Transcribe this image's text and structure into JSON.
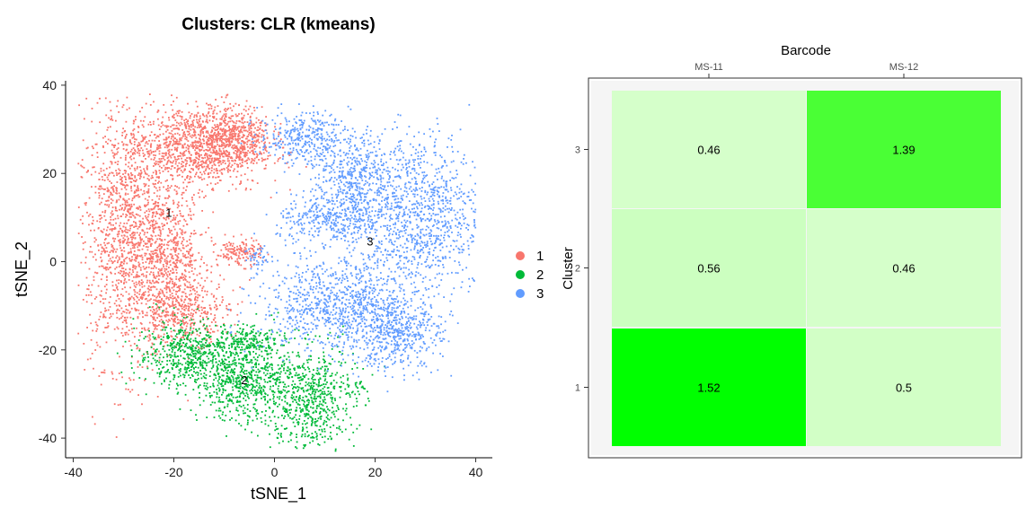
{
  "chart_data": [
    {
      "type": "scatter",
      "title": "Clusters: CLR (kmeans)",
      "xlabel": "tSNE_1",
      "ylabel": "tSNE_2",
      "xlim": [
        -40,
        43
      ],
      "ylim": [
        -45,
        41
      ],
      "xticks": [
        -40,
        -20,
        0,
        20,
        40
      ],
      "yticks": [
        40,
        20,
        0,
        -20,
        -40
      ],
      "legend": {
        "position": "right",
        "entries": [
          "1",
          "2",
          "3"
        ]
      },
      "colors": {
        "1": "#F8766D",
        "2": "#00BA38",
        "3": "#619CFF"
      },
      "series": [
        {
          "name": "1",
          "center": [
            -21,
            11
          ],
          "blobs": [
            [
              -29,
              5,
              7,
              19,
              1400
            ],
            [
              -16,
              26,
              9,
              6,
              1000
            ],
            [
              -8,
              28,
              5,
              5,
              500
            ],
            [
              -21,
              2,
              5,
              9,
              500
            ],
            [
              -7,
              2,
              3,
              2,
              150
            ],
            [
              -18,
              -11,
              6,
              5,
              450
            ]
          ]
        },
        {
          "name": "2",
          "center": [
            -6,
            -27
          ],
          "blobs": [
            [
              -17,
              -21,
              7,
              5,
              550
            ],
            [
              -6,
              -27,
              6,
              6,
              600
            ],
            [
              7,
              -31,
              6,
              8,
              650
            ],
            [
              -5,
              -18,
              4,
              2,
              150
            ],
            [
              17,
              -28,
              1,
              1,
              15
            ]
          ]
        },
        {
          "name": "3",
          "center": [
            19,
            5
          ],
          "blobs": [
            [
              6,
              28,
              6,
              4,
              350
            ],
            [
              16,
              19,
              5,
              6,
              400
            ],
            [
              28,
              11,
              9,
              12,
              1100
            ],
            [
              11,
              9,
              7,
              4,
              350
            ],
            [
              14,
              -10,
              11,
              7,
              1000
            ],
            [
              24,
              -17,
              6,
              5,
              400
            ],
            [
              -3,
              1,
              2,
              2,
              40
            ]
          ]
        }
      ],
      "cluster_labels": [
        {
          "text": "1",
          "x": -21,
          "y": 11
        },
        {
          "text": "2",
          "x": -6,
          "y": -27
        },
        {
          "text": "3",
          "x": 19,
          "y": 4.5
        }
      ]
    },
    {
      "type": "heatmap",
      "xlabel": "Barcode",
      "ylabel": "Cluster",
      "x_categories": [
        "MS-11",
        "MS-12"
      ],
      "y_categories": [
        "1",
        "2",
        "3"
      ],
      "values": [
        {
          "cluster": "1",
          "barcode": "MS-11",
          "value": 1.52,
          "label": "1.52",
          "color": "#00FF00"
        },
        {
          "cluster": "1",
          "barcode": "MS-12",
          "value": 0.5,
          "label": "0.5",
          "color": "#D2FFC6"
        },
        {
          "cluster": "2",
          "barcode": "MS-11",
          "value": 0.56,
          "label": "0.56",
          "color": "#CCFFC0"
        },
        {
          "cluster": "2",
          "barcode": "MS-12",
          "value": 0.46,
          "label": "0.46",
          "color": "#D5FFCA"
        },
        {
          "cluster": "3",
          "barcode": "MS-11",
          "value": 0.46,
          "label": "0.46",
          "color": "#D5FFCA"
        },
        {
          "cluster": "3",
          "barcode": "MS-12",
          "value": 1.39,
          "label": "1.39",
          "color": "#4AFF35"
        }
      ]
    }
  ]
}
